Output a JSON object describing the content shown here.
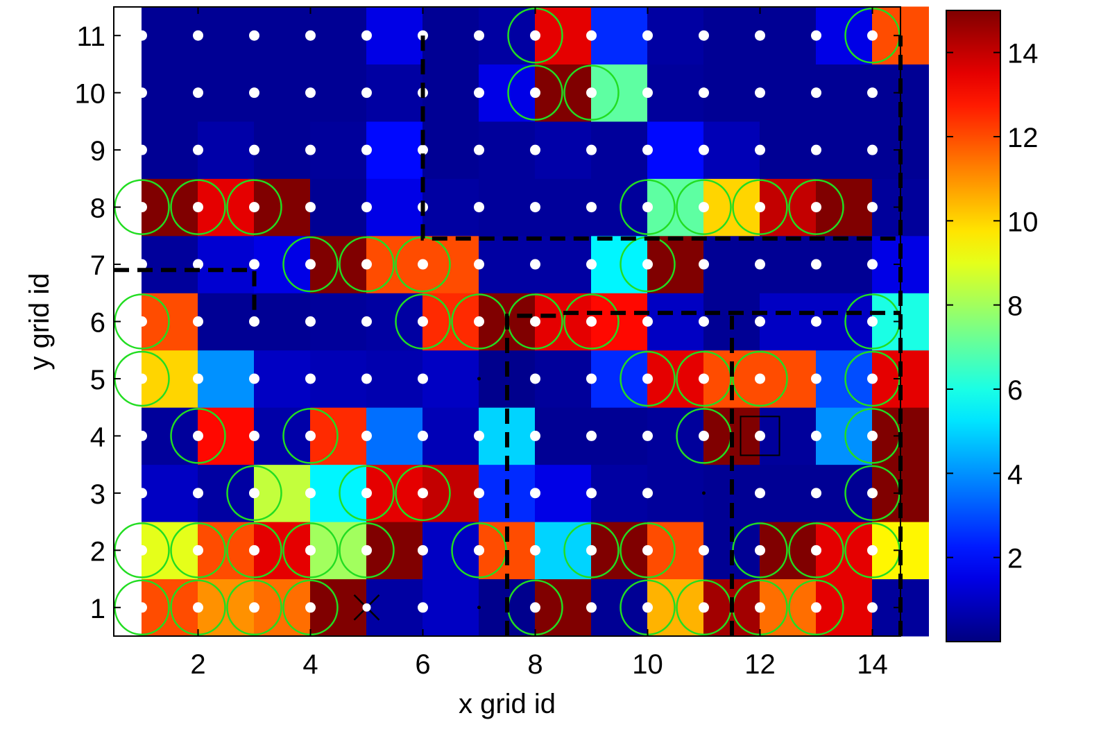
{
  "chart_data": {
    "type": "heatmap",
    "title": "",
    "xlabel": "x grid id",
    "ylabel": "y grid id",
    "x_categories": [
      1,
      2,
      3,
      4,
      5,
      6,
      7,
      8,
      9,
      10,
      11,
      12,
      13,
      14
    ],
    "y_categories": [
      1,
      2,
      3,
      4,
      5,
      6,
      7,
      8,
      9,
      10,
      11
    ],
    "x_tick_labels": [
      "2",
      "4",
      "6",
      "8",
      "10",
      "12",
      "14"
    ],
    "y_tick_labels": [
      "1",
      "2",
      "3",
      "4",
      "5",
      "6",
      "7",
      "8",
      "9",
      "10",
      "11"
    ],
    "colorbar": {
      "colormap": "jet",
      "range": [
        0,
        15
      ],
      "tick_labels": [
        "2",
        "4",
        "6",
        "8",
        "10",
        "12",
        "14"
      ]
    },
    "values_row_order": "y=1 first",
    "values": [
      [
        12,
        11,
        11.5,
        15,
        0.5,
        1,
        0.2,
        15,
        0.3,
        10.5,
        14.5,
        11.5,
        13.5,
        0.4
      ],
      [
        9,
        12,
        13.5,
        8,
        15,
        1,
        12,
        5,
        15,
        12,
        0.3,
        15,
        13.5,
        9.5
      ],
      [
        1,
        0.5,
        8.5,
        5.5,
        13.5,
        14,
        2.5,
        1.5,
        0.5,
        0.4,
        0.3,
        0.3,
        0.3,
        15
      ],
      [
        0.4,
        13,
        0.6,
        12.5,
        3.5,
        0.8,
        5,
        0.3,
        0.3,
        0.4,
        15,
        0.4,
        4,
        15
      ],
      [
        10,
        4,
        1,
        0.8,
        0.7,
        1,
        0.2,
        0.4,
        2.5,
        13.5,
        12,
        12,
        3,
        13.5
      ],
      [
        12,
        0.3,
        0.3,
        0.4,
        0.5,
        12.5,
        15,
        13.5,
        13,
        1,
        0.3,
        1,
        1,
        6
      ],
      [
        0.4,
        1.2,
        1.5,
        15,
        12,
        12,
        0.5,
        0.5,
        5.5,
        15,
        0.3,
        0.3,
        0.3,
        1.5
      ],
      [
        15,
        13.5,
        15,
        0.3,
        1.5,
        0.5,
        0.4,
        0.4,
        0.4,
        7,
        10,
        14,
        15,
        0.4
      ],
      [
        0.3,
        0.6,
        0.3,
        0.4,
        2,
        0.3,
        0.4,
        0.6,
        0.4,
        2,
        0.8,
        0.3,
        0.3,
        0.3
      ],
      [
        0.3,
        0.3,
        0.3,
        0.3,
        0.5,
        0.3,
        1.5,
        15,
        7,
        0.4,
        0.3,
        0.3,
        0.3,
        0.3
      ],
      [
        0.3,
        0.3,
        0.3,
        0.3,
        1.5,
        0.3,
        0.5,
        13.5,
        2.5,
        0.5,
        0.3,
        0.3,
        1.5,
        12
      ]
    ],
    "circled_cells": [
      [
        1,
        1
      ],
      [
        2,
        1
      ],
      [
        3,
        1
      ],
      [
        4,
        1
      ],
      [
        8,
        1
      ],
      [
        10,
        1
      ],
      [
        11,
        1
      ],
      [
        12,
        1
      ],
      [
        13,
        1
      ],
      [
        1,
        2
      ],
      [
        2,
        2
      ],
      [
        3,
        2
      ],
      [
        4,
        2
      ],
      [
        5,
        2
      ],
      [
        7,
        2
      ],
      [
        9,
        2
      ],
      [
        10,
        2
      ],
      [
        12,
        2
      ],
      [
        13,
        2
      ],
      [
        14,
        2
      ],
      [
        3,
        3
      ],
      [
        5,
        3
      ],
      [
        6,
        3
      ],
      [
        14,
        3
      ],
      [
        2,
        4
      ],
      [
        4,
        4
      ],
      [
        11,
        4
      ],
      [
        14,
        4
      ],
      [
        1,
        5
      ],
      [
        10,
        5
      ],
      [
        11,
        5
      ],
      [
        12,
        5
      ],
      [
        14,
        5
      ],
      [
        1,
        6
      ],
      [
        6,
        6
      ],
      [
        7,
        6
      ],
      [
        8,
        6
      ],
      [
        9,
        6
      ],
      [
        14,
        6
      ],
      [
        4,
        7
      ],
      [
        5,
        7
      ],
      [
        6,
        7
      ],
      [
        10,
        7
      ],
      [
        1,
        8
      ],
      [
        2,
        8
      ],
      [
        3,
        8
      ],
      [
        10,
        8
      ],
      [
        11,
        8
      ],
      [
        12,
        8
      ],
      [
        13,
        8
      ],
      [
        8,
        10
      ],
      [
        9,
        10
      ],
      [
        8,
        11
      ],
      [
        14,
        11
      ]
    ],
    "no_dot_cells": [
      [
        7,
        1
      ],
      [
        7,
        5
      ],
      [
        11,
        3
      ]
    ],
    "cross_marker": [
      5,
      1
    ],
    "square_marker": [
      12,
      4
    ],
    "boundary_lines": [
      [
        [
          0.5,
          6.9
        ],
        [
          3,
          6.9
        ],
        [
          3,
          6.1
        ]
      ],
      [
        [
          6,
          11
        ],
        [
          6,
          7.45
        ],
        [
          14.5,
          7.45
        ]
      ],
      [
        [
          7.5,
          0.5
        ],
        [
          7.5,
          6.1
        ],
        [
          8.5,
          6.1
        ]
      ],
      [
        [
          8.5,
          6.15
        ],
        [
          14.5,
          6.15
        ]
      ],
      [
        [
          11.5,
          0.5
        ],
        [
          11.5,
          6.1
        ]
      ],
      [
        [
          14.5,
          0.5
        ],
        [
          14.5,
          11
        ]
      ]
    ],
    "grid": false
  }
}
